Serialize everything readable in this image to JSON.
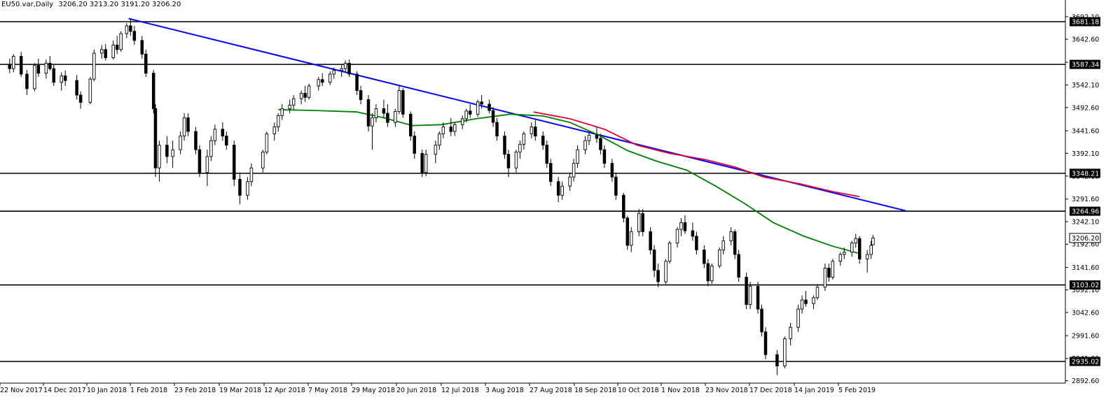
{
  "title": {
    "symbol": "EU50.var,Daily",
    "ohlc": "3206.20 3213.20 3191.20 3206.20"
  },
  "chart_data": {
    "type": "candlestick",
    "ylim": [
      2860,
      3710
    ],
    "price_ticks": [
      "3692.10",
      "3642.60",
      "3592.10",
      "3542.10",
      "3492.60",
      "3441.60",
      "3392.10",
      "3342.10",
      "3291.60",
      "3242.10",
      "3192.60",
      "3141.60",
      "3092.10",
      "3042.60",
      "2991.60",
      "2941.60",
      "2892.60"
    ],
    "date_labels": [
      "22 Nov 2017",
      "14 Dec 2017",
      "10 Jan 2018",
      "1 Feb 2018",
      "23 Feb 2018",
      "19 Mar 2018",
      "12 Apr 2018",
      "7 May 2018",
      "29 May 2018",
      "20 Jun 2018",
      "12 Jul 2018",
      "3 Aug 2018",
      "27 Aug 2018",
      "18 Sep 2018",
      "10 Oct 2018",
      "1 Nov 2018",
      "23 Nov 2018",
      "17 Dec 2018",
      "14 Jan 2019",
      "5 Feb 2019"
    ],
    "horizontal_levels": [
      "3681.18",
      "3587.34",
      "3348.21",
      "3264.96",
      "3103.02",
      "2935.02"
    ],
    "current_price": "3206.20",
    "trendline": {
      "from": [
        "2018-01-23",
        3688
      ],
      "to": [
        "2019-03-04",
        3266
      ],
      "color": "#0000ff"
    },
    "moving_average_green": {
      "color": "#008000",
      "points": [
        [
          "2018-04-11",
          3488
        ],
        [
          "2018-05-01",
          3486
        ],
        [
          "2018-05-22",
          3483
        ],
        [
          "2018-06-05",
          3470
        ],
        [
          "2018-06-20",
          3453
        ],
        [
          "2018-07-05",
          3455
        ],
        [
          "2018-07-23",
          3468
        ],
        [
          "2018-08-10",
          3478
        ],
        [
          "2018-08-27",
          3474
        ],
        [
          "2018-09-10",
          3460
        ],
        [
          "2018-09-25",
          3432
        ],
        [
          "2018-10-10",
          3398
        ],
        [
          "2018-10-25",
          3375
        ],
        [
          "2018-11-10",
          3355
        ],
        [
          "2018-11-25",
          3320
        ],
        [
          "2018-12-10",
          3282
        ],
        [
          "2018-12-25",
          3240
        ],
        [
          "2019-01-10",
          3210
        ],
        [
          "2019-01-25",
          3188
        ],
        [
          "2019-02-08",
          3172
        ]
      ]
    },
    "moving_average_red": {
      "color": "#e00030",
      "points": [
        [
          "2018-08-22",
          3483
        ],
        [
          "2018-09-10",
          3468
        ],
        [
          "2018-09-28",
          3445
        ],
        [
          "2018-10-15",
          3410
        ],
        [
          "2018-11-01",
          3392
        ],
        [
          "2018-11-20",
          3378
        ],
        [
          "2018-12-05",
          3362
        ],
        [
          "2018-12-20",
          3340
        ],
        [
          "2019-01-08",
          3325
        ],
        [
          "2019-01-25",
          3308
        ],
        [
          "2019-02-08",
          3297
        ]
      ]
    },
    "candles": [
      [
        "2017-11-22",
        3586,
        3600,
        3568,
        3578
      ],
      [
        "2017-11-24",
        3578,
        3610,
        3570,
        3605
      ],
      [
        "2017-11-28",
        3605,
        3615,
        3560,
        3566
      ],
      [
        "2017-12-01",
        3566,
        3575,
        3520,
        3534
      ],
      [
        "2017-12-05",
        3534,
        3590,
        3528,
        3585
      ],
      [
        "2017-12-07",
        3585,
        3600,
        3560,
        3568
      ],
      [
        "2017-12-11",
        3568,
        3598,
        3556,
        3590
      ],
      [
        "2017-12-13",
        3590,
        3606,
        3574,
        3578
      ],
      [
        "2017-12-15",
        3578,
        3588,
        3540,
        3548
      ],
      [
        "2017-12-19",
        3548,
        3570,
        3530,
        3562
      ],
      [
        "2017-12-21",
        3562,
        3574,
        3540,
        3552
      ],
      [
        "2017-12-27",
        3552,
        3564,
        3510,
        3520
      ],
      [
        "2017-12-29",
        3520,
        3528,
        3490,
        3504
      ],
      [
        "2018-01-03",
        3504,
        3560,
        3500,
        3555
      ],
      [
        "2018-01-05",
        3555,
        3620,
        3550,
        3612
      ],
      [
        "2018-01-09",
        3612,
        3630,
        3600,
        3620
      ],
      [
        "2018-01-11",
        3620,
        3632,
        3596,
        3602
      ],
      [
        "2018-01-15",
        3602,
        3640,
        3598,
        3630
      ],
      [
        "2018-01-17",
        3630,
        3650,
        3610,
        3620
      ],
      [
        "2018-01-19",
        3620,
        3660,
        3615,
        3655
      ],
      [
        "2018-01-22",
        3655,
        3678,
        3645,
        3672
      ],
      [
        "2018-01-24",
        3672,
        3688,
        3650,
        3660
      ],
      [
        "2018-01-26",
        3660,
        3672,
        3630,
        3640
      ],
      [
        "2018-01-30",
        3640,
        3650,
        3600,
        3610
      ],
      [
        "2018-02-01",
        3610,
        3620,
        3560,
        3568
      ],
      [
        "2018-02-05",
        3568,
        3575,
        3480,
        3490
      ],
      [
        "2018-02-06",
        3490,
        3500,
        3340,
        3360
      ],
      [
        "2018-02-08",
        3360,
        3420,
        3330,
        3410
      ],
      [
        "2018-02-12",
        3410,
        3430,
        3370,
        3385
      ],
      [
        "2018-02-15",
        3385,
        3420,
        3360,
        3400
      ],
      [
        "2018-02-19",
        3400,
        3440,
        3390,
        3430
      ],
      [
        "2018-02-21",
        3430,
        3480,
        3420,
        3470
      ],
      [
        "2018-02-23",
        3470,
        3480,
        3430,
        3440
      ],
      [
        "2018-02-27",
        3440,
        3450,
        3390,
        3400
      ],
      [
        "2018-03-01",
        3400,
        3410,
        3340,
        3350
      ],
      [
        "2018-03-05",
        3350,
        3400,
        3320,
        3385
      ],
      [
        "2018-03-07",
        3385,
        3430,
        3375,
        3420
      ],
      [
        "2018-03-09",
        3420,
        3455,
        3410,
        3445
      ],
      [
        "2018-03-13",
        3445,
        3460,
        3420,
        3430
      ],
      [
        "2018-03-15",
        3430,
        3440,
        3400,
        3410
      ],
      [
        "2018-03-19",
        3410,
        3420,
        3320,
        3335
      ],
      [
        "2018-03-22",
        3335,
        3350,
        3280,
        3300
      ],
      [
        "2018-03-26",
        3300,
        3340,
        3290,
        3330
      ],
      [
        "2018-03-28",
        3330,
        3370,
        3320,
        3360
      ],
      [
        "2018-04-03",
        3360,
        3400,
        3350,
        3395
      ],
      [
        "2018-04-05",
        3395,
        3440,
        3390,
        3435
      ],
      [
        "2018-04-09",
        3435,
        3460,
        3420,
        3450
      ],
      [
        "2018-04-11",
        3450,
        3480,
        3440,
        3475
      ],
      [
        "2018-04-13",
        3475,
        3500,
        3465,
        3490
      ],
      [
        "2018-04-17",
        3490,
        3510,
        3480,
        3498
      ],
      [
        "2018-04-19",
        3498,
        3520,
        3488,
        3512
      ],
      [
        "2018-04-23",
        3512,
        3530,
        3500,
        3524
      ],
      [
        "2018-04-25",
        3524,
        3540,
        3505,
        3515
      ],
      [
        "2018-04-27",
        3515,
        3545,
        3510,
        3540
      ],
      [
        "2018-05-02",
        3540,
        3560,
        3530,
        3554
      ],
      [
        "2018-05-04",
        3554,
        3568,
        3540,
        3548
      ],
      [
        "2018-05-08",
        3548,
        3572,
        3542,
        3566
      ],
      [
        "2018-05-10",
        3566,
        3580,
        3556,
        3574
      ],
      [
        "2018-05-14",
        3574,
        3588,
        3560,
        3578
      ],
      [
        "2018-05-16",
        3578,
        3596,
        3570,
        3590
      ],
      [
        "2018-05-18",
        3590,
        3598,
        3560,
        3566
      ],
      [
        "2018-05-22",
        3566,
        3572,
        3520,
        3530
      ],
      [
        "2018-05-24",
        3530,
        3540,
        3500,
        3510
      ],
      [
        "2018-05-28",
        3510,
        3520,
        3440,
        3452
      ],
      [
        "2018-05-30",
        3452,
        3480,
        3400,
        3470
      ],
      [
        "2018-06-01",
        3470,
        3500,
        3460,
        3490
      ],
      [
        "2018-06-05",
        3490,
        3510,
        3470,
        3480
      ],
      [
        "2018-06-07",
        3480,
        3500,
        3450,
        3460
      ],
      [
        "2018-06-11",
        3460,
        3490,
        3450,
        3484
      ],
      [
        "2018-06-13",
        3484,
        3540,
        3478,
        3530
      ],
      [
        "2018-06-15",
        3530,
        3535,
        3470,
        3478
      ],
      [
        "2018-06-19",
        3478,
        3484,
        3420,
        3430
      ],
      [
        "2018-06-21",
        3430,
        3440,
        3380,
        3392
      ],
      [
        "2018-06-25",
        3392,
        3400,
        3340,
        3350
      ],
      [
        "2018-06-27",
        3350,
        3400,
        3342,
        3390
      ],
      [
        "2018-07-02",
        3390,
        3420,
        3370,
        3410
      ],
      [
        "2018-07-04",
        3410,
        3440,
        3400,
        3435
      ],
      [
        "2018-07-06",
        3435,
        3460,
        3425,
        3450
      ],
      [
        "2018-07-10",
        3450,
        3470,
        3430,
        3440
      ],
      [
        "2018-07-12",
        3440,
        3460,
        3430,
        3455
      ],
      [
        "2018-07-16",
        3455,
        3475,
        3445,
        3468
      ],
      [
        "2018-07-18",
        3468,
        3490,
        3460,
        3485
      ],
      [
        "2018-07-20",
        3485,
        3500,
        3470,
        3478
      ],
      [
        "2018-07-24",
        3478,
        3510,
        3472,
        3505
      ],
      [
        "2018-07-26",
        3505,
        3520,
        3490,
        3500
      ],
      [
        "2018-07-30",
        3500,
        3510,
        3480,
        3486
      ],
      [
        "2018-08-01",
        3486,
        3494,
        3450,
        3460
      ],
      [
        "2018-08-03",
        3460,
        3470,
        3420,
        3430
      ],
      [
        "2018-08-07",
        3430,
        3440,
        3380,
        3390
      ],
      [
        "2018-08-09",
        3390,
        3400,
        3340,
        3360
      ],
      [
        "2018-08-13",
        3360,
        3400,
        3350,
        3395
      ],
      [
        "2018-08-15",
        3395,
        3420,
        3380,
        3412
      ],
      [
        "2018-08-17",
        3412,
        3440,
        3400,
        3435
      ],
      [
        "2018-08-21",
        3435,
        3460,
        3425,
        3450
      ],
      [
        "2018-08-23",
        3450,
        3465,
        3420,
        3430
      ],
      [
        "2018-08-27",
        3430,
        3440,
        3400,
        3410
      ],
      [
        "2018-08-29",
        3410,
        3420,
        3360,
        3370
      ],
      [
        "2018-08-31",
        3370,
        3380,
        3320,
        3330
      ],
      [
        "2018-09-04",
        3330,
        3340,
        3285,
        3300
      ],
      [
        "2018-09-06",
        3300,
        3330,
        3290,
        3320
      ],
      [
        "2018-09-10",
        3320,
        3350,
        3310,
        3340
      ],
      [
        "2018-09-12",
        3340,
        3380,
        3330,
        3370
      ],
      [
        "2018-09-14",
        3370,
        3410,
        3360,
        3400
      ],
      [
        "2018-09-18",
        3400,
        3430,
        3390,
        3420
      ],
      [
        "2018-09-20",
        3420,
        3440,
        3410,
        3432
      ],
      [
        "2018-09-24",
        3432,
        3450,
        3415,
        3425
      ],
      [
        "2018-09-26",
        3425,
        3435,
        3390,
        3400
      ],
      [
        "2018-09-28",
        3400,
        3410,
        3360,
        3370
      ],
      [
        "2018-10-02",
        3370,
        3380,
        3330,
        3340
      ],
      [
        "2018-10-04",
        3340,
        3350,
        3290,
        3300
      ],
      [
        "2018-10-08",
        3300,
        3305,
        3240,
        3250
      ],
      [
        "2018-10-10",
        3250,
        3255,
        3180,
        3190
      ],
      [
        "2018-10-12",
        3190,
        3230,
        3175,
        3220
      ],
      [
        "2018-10-16",
        3220,
        3270,
        3210,
        3260
      ],
      [
        "2018-10-18",
        3260,
        3270,
        3210,
        3220
      ],
      [
        "2018-10-22",
        3220,
        3230,
        3170,
        3180
      ],
      [
        "2018-10-24",
        3180,
        3190,
        3120,
        3135
      ],
      [
        "2018-10-26",
        3135,
        3150,
        3098,
        3110
      ],
      [
        "2018-10-30",
        3110,
        3160,
        3105,
        3155
      ],
      [
        "2018-11-01",
        3155,
        3200,
        3150,
        3195
      ],
      [
        "2018-11-05",
        3195,
        3230,
        3185,
        3225
      ],
      [
        "2018-11-07",
        3225,
        3250,
        3210,
        3240
      ],
      [
        "2018-11-09",
        3240,
        3256,
        3215,
        3222
      ],
      [
        "2018-11-13",
        3222,
        3240,
        3200,
        3210
      ],
      [
        "2018-11-15",
        3210,
        3220,
        3170,
        3180
      ],
      [
        "2018-11-19",
        3180,
        3190,
        3140,
        3150
      ],
      [
        "2018-11-21",
        3150,
        3160,
        3100,
        3112
      ],
      [
        "2018-11-23",
        3112,
        3150,
        3105,
        3145
      ],
      [
        "2018-11-27",
        3145,
        3185,
        3140,
        3180
      ],
      [
        "2018-11-29",
        3180,
        3210,
        3170,
        3200
      ],
      [
        "2018-12-03",
        3200,
        3230,
        3190,
        3220
      ],
      [
        "2018-12-05",
        3220,
        3225,
        3160,
        3170
      ],
      [
        "2018-12-07",
        3170,
        3180,
        3110,
        3120
      ],
      [
        "2018-12-11",
        3120,
        3130,
        3050,
        3060
      ],
      [
        "2018-12-13",
        3060,
        3110,
        3050,
        3100
      ],
      [
        "2018-12-17",
        3100,
        3110,
        3040,
        3050
      ],
      [
        "2018-12-19",
        3050,
        3060,
        2990,
        3000
      ],
      [
        "2018-12-21",
        3000,
        3010,
        2940,
        2950
      ],
      [
        "2018-12-27",
        2950,
        2960,
        2905,
        2925
      ],
      [
        "2018-12-31",
        2925,
        2990,
        2920,
        2985
      ],
      [
        "2019-01-03",
        2985,
        3020,
        2970,
        3010
      ],
      [
        "2019-01-07",
        3010,
        3060,
        3000,
        3050
      ],
      [
        "2019-01-09",
        3050,
        3080,
        3040,
        3070
      ],
      [
        "2019-01-11",
        3070,
        3090,
        3055,
        3062
      ],
      [
        "2019-01-15",
        3062,
        3080,
        3050,
        3075
      ],
      [
        "2019-01-17",
        3075,
        3105,
        3070,
        3098
      ],
      [
        "2019-01-21",
        3098,
        3150,
        3090,
        3140
      ],
      [
        "2019-01-23",
        3140,
        3150,
        3110,
        3120
      ],
      [
        "2019-01-25",
        3120,
        3160,
        3115,
        3155
      ],
      [
        "2019-01-29",
        3155,
        3175,
        3145,
        3170
      ],
      [
        "2019-01-31",
        3170,
        3185,
        3160,
        3175
      ],
      [
        "2019-02-04",
        3175,
        3200,
        3165,
        3195
      ],
      [
        "2019-02-06",
        3195,
        3215,
        3185,
        3205
      ],
      [
        "2019-02-08",
        3205,
        3210,
        3150,
        3160
      ],
      [
        "2019-02-12",
        3160,
        3180,
        3130,
        3170
      ],
      [
        "2019-02-14",
        3170,
        3200,
        3160,
        3190
      ],
      [
        "2019-02-15",
        3191.2,
        3213.2,
        3191.2,
        3206.2
      ]
    ]
  }
}
